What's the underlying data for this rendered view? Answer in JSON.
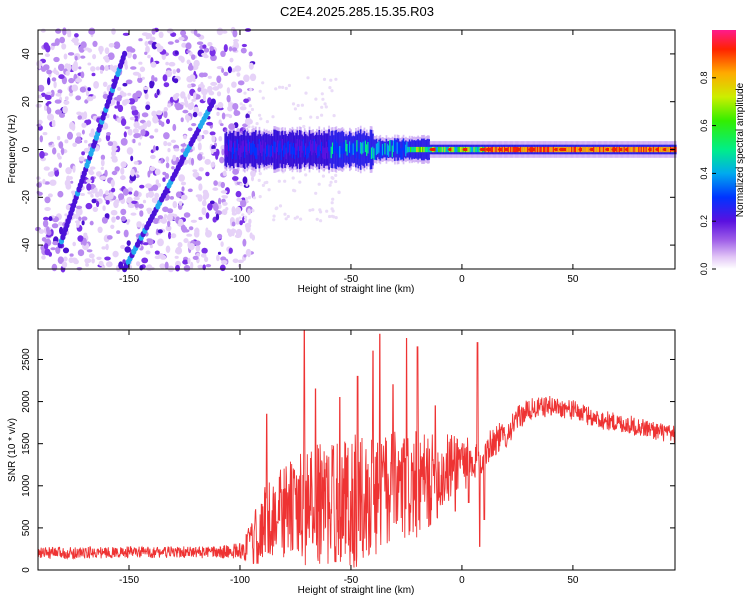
{
  "title": "C2E4.2025.285.15.35.R03",
  "chart_data": [
    {
      "type": "heatmap",
      "name": "spectrogram",
      "xlabel": "Height of straight line (km)",
      "ylabel": "Frequency (Hz)",
      "xlim": [
        -191,
        96
      ],
      "ylim": [
        -50,
        50
      ],
      "xticks": [
        -150,
        -100,
        -50,
        0,
        50
      ],
      "yticks": [
        -40,
        -20,
        0,
        20,
        40
      ],
      "colorbar": {
        "label": "Normalized spectral amplitude",
        "range": [
          0,
          1
        ],
        "ticks": [
          0.0,
          0.2,
          0.4,
          0.6,
          0.8
        ],
        "tick_labels": [
          "0.0",
          "0.2",
          "0.4",
          "0.6",
          "0.8"
        ]
      },
      "features": [
        {
          "name": "main-band",
          "x_range": [
            -107,
            96
          ],
          "center_hz": 0,
          "note": "strong narrow band near 0 Hz, widening toward low heights"
        },
        {
          "name": "diagonal-trace-1",
          "from": [
            -181,
            -40
          ],
          "to": [
            -152,
            40
          ]
        },
        {
          "name": "diagonal-trace-2",
          "from": [
            -152,
            -50
          ],
          "to": [
            -112,
            20
          ]
        },
        {
          "name": "noise-region",
          "x_range": [
            -191,
            -100
          ],
          "note": "scattered speckle across all frequencies"
        }
      ]
    },
    {
      "type": "line",
      "name": "snr",
      "xlabel": "Height of straight line (km)",
      "ylabel": "SNR (10 * v/v)",
      "xlim": [
        -191,
        96
      ],
      "ylim": [
        0,
        2850
      ],
      "xticks": [
        -150,
        -100,
        -50,
        0,
        50
      ],
      "yticks": [
        0,
        500,
        1000,
        1500,
        2000,
        2500
      ],
      "color": "#ee3333",
      "baseline": [
        [
          -191,
          200
        ],
        [
          -150,
          210
        ],
        [
          -110,
          210
        ],
        [
          -100,
          230
        ],
        [
          -95,
          300
        ],
        [
          -90,
          500
        ],
        [
          -85,
          650
        ],
        [
          -80,
          700
        ],
        [
          -70,
          750
        ],
        [
          -60,
          780
        ],
        [
          -50,
          800
        ],
        [
          -40,
          900
        ],
        [
          -30,
          950
        ],
        [
          -20,
          1000
        ],
        [
          -10,
          1100
        ],
        [
          0,
          1350
        ],
        [
          5,
          1150
        ],
        [
          10,
          1450
        ],
        [
          15,
          1550
        ],
        [
          20,
          1600
        ],
        [
          25,
          1800
        ],
        [
          30,
          1900
        ],
        [
          40,
          1950
        ],
        [
          50,
          1900
        ],
        [
          60,
          1800
        ],
        [
          70,
          1750
        ],
        [
          80,
          1700
        ],
        [
          96,
          1600
        ]
      ],
      "noise_amplitude": [
        [
          -191,
          70
        ],
        [
          -110,
          70
        ],
        [
          -100,
          100
        ],
        [
          -90,
          450
        ],
        [
          -70,
          700
        ],
        [
          -50,
          800
        ],
        [
          -20,
          650
        ],
        [
          0,
          350
        ],
        [
          10,
          250
        ],
        [
          20,
          150
        ],
        [
          40,
          120
        ],
        [
          96,
          110
        ]
      ],
      "spikes": [
        [
          -88,
          1850
        ],
        [
          -71,
          2850
        ],
        [
          -66,
          2150
        ],
        [
          -55,
          2050
        ],
        [
          -47,
          2300
        ],
        [
          -40,
          2600
        ],
        [
          -37,
          2800
        ],
        [
          -31,
          2200
        ],
        [
          -25,
          2750
        ],
        [
          -20,
          2650
        ],
        [
          -12,
          1950
        ],
        [
          7,
          2700
        ]
      ],
      "dips": [
        [
          -3,
          700
        ],
        [
          3,
          800
        ],
        [
          8,
          280
        ],
        [
          10,
          600
        ]
      ]
    }
  ]
}
